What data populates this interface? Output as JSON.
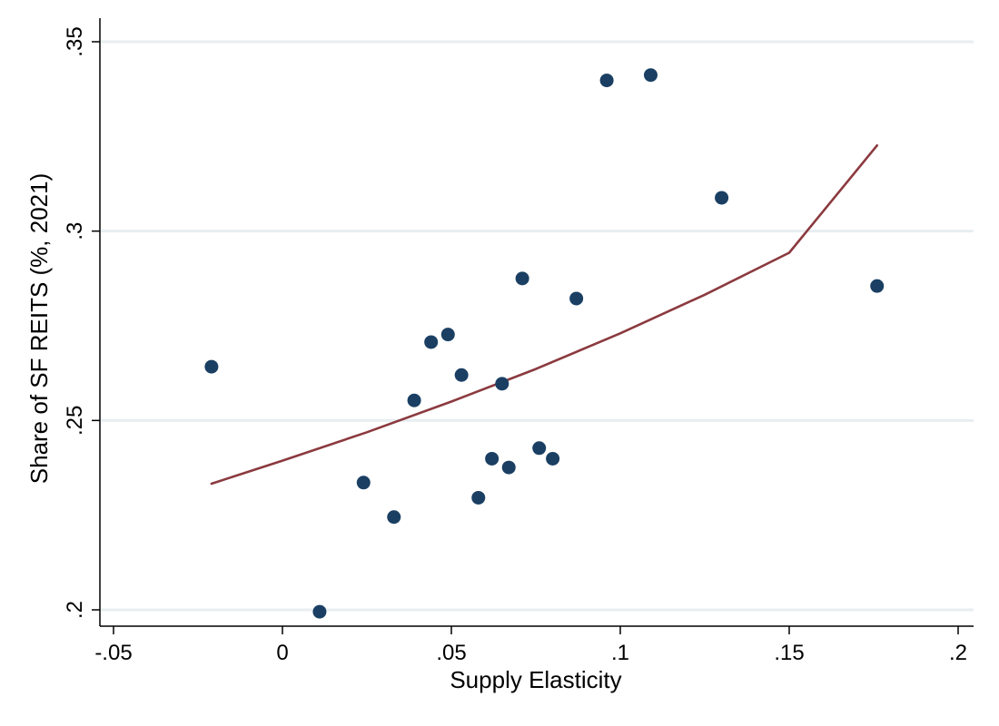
{
  "chart_data": {
    "type": "scatter",
    "title": "",
    "xlabel": "Supply Elasticity",
    "ylabel": "Share of SF REITS (%, 2021)",
    "xlim": [
      -0.05,
      0.2
    ],
    "ylim": [
      0.2,
      0.35
    ],
    "x_ticks": [
      -0.05,
      0,
      0.05,
      0.1,
      0.15,
      0.2
    ],
    "x_tick_labels": [
      "-.05",
      "0",
      ".05",
      ".1",
      ".15",
      ".2"
    ],
    "y_ticks": [
      0.2,
      0.25,
      0.3,
      0.35
    ],
    "y_tick_labels": [
      ".2",
      ".25",
      ".3",
      ".35"
    ],
    "grid": "horizontal",
    "legend": "none",
    "colors": {
      "points": "#1a3f63",
      "fit_line": "#8b3a3f",
      "grid": "#e8eef1",
      "axis": "#000000"
    },
    "points": [
      {
        "x": -0.021,
        "y": 0.2642
      },
      {
        "x": 0.011,
        "y": 0.1995
      },
      {
        "x": 0.024,
        "y": 0.2336
      },
      {
        "x": 0.033,
        "y": 0.2245
      },
      {
        "x": 0.039,
        "y": 0.2553
      },
      {
        "x": 0.044,
        "y": 0.2707
      },
      {
        "x": 0.049,
        "y": 0.2727
      },
      {
        "x": 0.053,
        "y": 0.262
      },
      {
        "x": 0.058,
        "y": 0.2296
      },
      {
        "x": 0.062,
        "y": 0.2399
      },
      {
        "x": 0.065,
        "y": 0.2597
      },
      {
        "x": 0.067,
        "y": 0.2376
      },
      {
        "x": 0.071,
        "y": 0.2875
      },
      {
        "x": 0.076,
        "y": 0.2427
      },
      {
        "x": 0.08,
        "y": 0.2399
      },
      {
        "x": 0.087,
        "y": 0.2822
      },
      {
        "x": 0.096,
        "y": 0.3398
      },
      {
        "x": 0.109,
        "y": 0.3412
      },
      {
        "x": 0.13,
        "y": 0.3088
      },
      {
        "x": 0.176,
        "y": 0.2855
      }
    ],
    "fit_line": {
      "x": [
        -0.021,
        0.0,
        0.025,
        0.05,
        0.075,
        0.1,
        0.125,
        0.15,
        0.176
      ],
      "y": [
        0.2333,
        0.2394,
        0.2469,
        0.255,
        0.2636,
        0.273,
        0.2832,
        0.2943,
        0.3226
      ]
    }
  }
}
